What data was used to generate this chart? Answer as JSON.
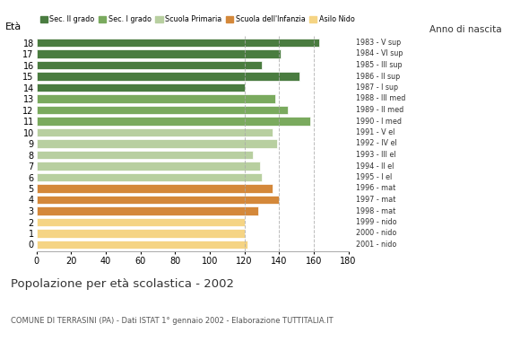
{
  "ages": [
    18,
    17,
    16,
    15,
    14,
    13,
    12,
    11,
    10,
    9,
    8,
    7,
    6,
    5,
    4,
    3,
    2,
    1,
    0
  ],
  "values": [
    163,
    141,
    130,
    152,
    120,
    138,
    145,
    158,
    136,
    139,
    125,
    129,
    130,
    136,
    140,
    128,
    120,
    120,
    122
  ],
  "right_labels": [
    "1983 - V sup",
    "1984 - VI sup",
    "1985 - III sup",
    "1986 - II sup",
    "1987 - I sup",
    "1988 - III med",
    "1989 - II med",
    "1990 - I med",
    "1991 - V el",
    "1992 - IV el",
    "1993 - III el",
    "1994 - II el",
    "1995 - I el",
    "1996 - mat",
    "1997 - mat",
    "1998 - mat",
    "1999 - nido",
    "2000 - nido",
    "2001 - nido"
  ],
  "colors": [
    "#4a7c40",
    "#4a7c40",
    "#4a7c40",
    "#4a7c40",
    "#4a7c40",
    "#7aaa5e",
    "#7aaa5e",
    "#7aaa5e",
    "#b8cfa0",
    "#b8cfa0",
    "#b8cfa0",
    "#b8cfa0",
    "#b8cfa0",
    "#d4883a",
    "#d4883a",
    "#d4883a",
    "#f5d484",
    "#f5d484",
    "#f5d484"
  ],
  "legend_labels": [
    "Sec. II grado",
    "Sec. I grado",
    "Scuola Primaria",
    "Scuola dell'Infanzia",
    "Asilo Nido"
  ],
  "legend_colors": [
    "#4a7c40",
    "#7aaa5e",
    "#b8cfa0",
    "#d4883a",
    "#f5d484"
  ],
  "title": "Popolazione per età scolastica - 2002",
  "subtitle": "COMUNE DI TERRASINI (PA) - Dati ISTAT 1° gennaio 2002 - Elaborazione TUTTITALIA.IT",
  "xlabel_eta": "Età",
  "xlabel_anno": "Anno di nascita",
  "xlim": [
    0,
    180
  ],
  "xticks": [
    0,
    20,
    40,
    60,
    80,
    100,
    120,
    140,
    160,
    180
  ],
  "vlines": [
    120,
    140,
    160
  ],
  "background_color": "#ffffff"
}
